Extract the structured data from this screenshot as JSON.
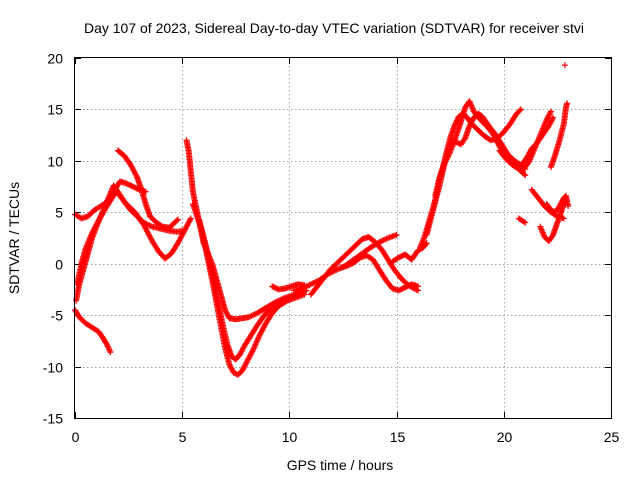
{
  "chart_data": {
    "type": "scatter",
    "title": "Day 107 of 2023, Sidereal Day-to-day VTEC variation (SDTVAR) for receiver stvi",
    "xlabel": "GPS time / hours",
    "ylabel": "SDTVAR / TECUs",
    "xlim": [
      0,
      25
    ],
    "ylim": [
      -15,
      20
    ],
    "xticks": [
      "0",
      "5",
      "10",
      "15",
      "20",
      "25"
    ],
    "yticks": [
      "-15",
      "-10",
      "-5",
      "0",
      "5",
      "10",
      "15",
      "20"
    ],
    "xtick_values": [
      0,
      5,
      10,
      15,
      20,
      25
    ],
    "ytick_values": [
      -15,
      -10,
      -5,
      0,
      5,
      10,
      15,
      20
    ],
    "grid": true,
    "marker": "+",
    "color": "#ff0000",
    "series": [
      {
        "points": [
          [
            0.0,
            4.8
          ],
          [
            0.3,
            4.4
          ],
          [
            0.6,
            4.6
          ],
          [
            0.9,
            5.2
          ],
          [
            1.2,
            5.6
          ],
          [
            1.5,
            6.0
          ],
          [
            1.8,
            7.0
          ],
          [
            2.1,
            8.0
          ],
          [
            2.4,
            7.8
          ],
          [
            2.7,
            7.5
          ],
          [
            3.0,
            7.2
          ],
          [
            3.3,
            7.0
          ]
        ]
      },
      {
        "points": [
          [
            0.0,
            -4.5
          ],
          [
            0.2,
            -5.2
          ],
          [
            0.5,
            -5.8
          ],
          [
            0.8,
            -6.2
          ],
          [
            1.1,
            -6.6
          ],
          [
            1.3,
            -7.2
          ],
          [
            1.5,
            -7.9
          ],
          [
            1.65,
            -8.6
          ]
        ]
      },
      {
        "points": [
          [
            0.05,
            -3.6
          ],
          [
            0.2,
            -2.0
          ],
          [
            0.4,
            -0.5
          ],
          [
            0.6,
            1.0
          ],
          [
            0.8,
            2.5
          ],
          [
            1.0,
            3.6
          ],
          [
            1.2,
            4.6
          ],
          [
            1.4,
            5.6
          ],
          [
            1.6,
            6.6
          ],
          [
            1.8,
            7.6
          ],
          [
            2.0,
            7.0
          ],
          [
            2.3,
            6.0
          ],
          [
            2.6,
            5.2
          ],
          [
            2.9,
            4.6
          ],
          [
            3.2,
            4.0
          ],
          [
            3.6,
            3.6
          ],
          [
            4.0,
            3.4
          ],
          [
            4.4,
            3.2
          ],
          [
            4.8,
            3.1
          ],
          [
            5.0,
            3.2
          ]
        ]
      },
      {
        "points": [
          [
            0.1,
            -2.0
          ],
          [
            0.3,
            0.0
          ],
          [
            0.5,
            1.5
          ],
          [
            0.8,
            3.0
          ],
          [
            1.1,
            4.2
          ],
          [
            1.4,
            5.3
          ],
          [
            1.7,
            6.3
          ],
          [
            1.9,
            7.0
          ],
          [
            2.1,
            6.6
          ],
          [
            2.4,
            5.8
          ],
          [
            2.8,
            5.0
          ],
          [
            3.2,
            3.8
          ],
          [
            3.6,
            2.2
          ],
          [
            3.9,
            1.2
          ],
          [
            4.2,
            0.5
          ],
          [
            4.5,
            1.0
          ],
          [
            4.8,
            2.0
          ],
          [
            5.1,
            3.2
          ],
          [
            5.4,
            4.4
          ]
        ]
      },
      {
        "points": [
          [
            2.0,
            11.0
          ],
          [
            2.3,
            10.5
          ],
          [
            2.6,
            9.6
          ],
          [
            2.9,
            8.4
          ],
          [
            3.1,
            7.2
          ],
          [
            3.3,
            5.8
          ],
          [
            3.5,
            4.6
          ],
          [
            3.8,
            4.0
          ],
          [
            4.1,
            3.6
          ],
          [
            4.4,
            3.5
          ],
          [
            4.6,
            3.9
          ],
          [
            4.8,
            4.3
          ]
        ]
      },
      {
        "points": [
          [
            5.2,
            12.0
          ],
          [
            5.3,
            11.0
          ],
          [
            5.35,
            10.0
          ],
          [
            5.4,
            9.0
          ],
          [
            5.45,
            8.0
          ],
          [
            5.5,
            7.0
          ],
          [
            5.6,
            6.0
          ],
          [
            5.7,
            5.0
          ],
          [
            5.8,
            4.0
          ],
          [
            5.9,
            3.0
          ],
          [
            6.0,
            2.0
          ],
          [
            6.2,
            1.0
          ],
          [
            6.4,
            0.0
          ],
          [
            6.6,
            -1.5
          ],
          [
            6.8,
            -3.0
          ],
          [
            7.0,
            -4.5
          ],
          [
            7.2,
            -5.3
          ],
          [
            7.5,
            -5.4
          ],
          [
            7.8,
            -5.3
          ],
          [
            8.1,
            -5.2
          ],
          [
            8.5,
            -4.8
          ],
          [
            8.9,
            -4.3
          ],
          [
            9.3,
            -3.8
          ],
          [
            9.7,
            -3.4
          ],
          [
            10.1,
            -3.1
          ],
          [
            10.5,
            -2.8
          ],
          [
            10.8,
            -2.6
          ]
        ]
      },
      {
        "points": [
          [
            5.5,
            5.8
          ],
          [
            5.7,
            4.6
          ],
          [
            5.9,
            3.4
          ],
          [
            6.1,
            1.8
          ],
          [
            6.3,
            0.0
          ],
          [
            6.5,
            -2.0
          ],
          [
            6.7,
            -4.0
          ],
          [
            6.9,
            -6.0
          ],
          [
            7.1,
            -7.8
          ],
          [
            7.3,
            -9.0
          ],
          [
            7.5,
            -9.3
          ],
          [
            7.7,
            -8.8
          ],
          [
            7.9,
            -8.0
          ],
          [
            8.2,
            -7.0
          ],
          [
            8.5,
            -6.0
          ],
          [
            8.8,
            -5.1
          ],
          [
            9.1,
            -4.4
          ],
          [
            9.4,
            -3.9
          ],
          [
            9.8,
            -3.5
          ],
          [
            10.2,
            -3.2
          ],
          [
            10.6,
            -2.9
          ]
        ]
      },
      {
        "points": [
          [
            5.8,
            4.2
          ],
          [
            6.0,
            2.4
          ],
          [
            6.2,
            0.4
          ],
          [
            6.4,
            -1.6
          ],
          [
            6.6,
            -3.8
          ],
          [
            6.8,
            -6.0
          ],
          [
            7.0,
            -8.2
          ],
          [
            7.2,
            -9.8
          ],
          [
            7.4,
            -10.6
          ],
          [
            7.6,
            -10.8
          ],
          [
            7.8,
            -10.4
          ],
          [
            8.0,
            -9.6
          ],
          [
            8.3,
            -8.4
          ],
          [
            8.6,
            -7.0
          ],
          [
            8.9,
            -5.8
          ],
          [
            9.2,
            -4.8
          ],
          [
            9.5,
            -4.1
          ],
          [
            9.9,
            -3.6
          ],
          [
            10.3,
            -3.3
          ],
          [
            10.7,
            -3.0
          ]
        ]
      },
      {
        "points": [
          [
            9.2,
            -2.2
          ],
          [
            9.5,
            -2.5
          ],
          [
            9.8,
            -2.4
          ],
          [
            10.1,
            -2.2
          ],
          [
            10.4,
            -2.0
          ],
          [
            10.7,
            -2.1
          ]
        ]
      },
      {
        "points": [
          [
            10.2,
            -2.6
          ],
          [
            10.6,
            -2.4
          ],
          [
            11.0,
            -2.0
          ],
          [
            11.4,
            -1.6
          ],
          [
            11.8,
            -1.0
          ],
          [
            12.2,
            -0.6
          ],
          [
            12.6,
            -0.2
          ],
          [
            13.0,
            0.4
          ],
          [
            13.4,
            1.0
          ],
          [
            13.8,
            1.6
          ],
          [
            14.2,
            2.1
          ],
          [
            14.6,
            2.5
          ],
          [
            15.0,
            2.8
          ]
        ]
      },
      {
        "points": [
          [
            11.0,
            -3.0
          ],
          [
            11.3,
            -2.2
          ],
          [
            11.6,
            -1.4
          ],
          [
            11.9,
            -0.6
          ],
          [
            12.2,
            0.0
          ],
          [
            12.5,
            0.6
          ],
          [
            12.8,
            1.2
          ],
          [
            13.1,
            1.8
          ],
          [
            13.4,
            2.4
          ],
          [
            13.7,
            2.6
          ],
          [
            14.0,
            2.1
          ],
          [
            14.3,
            1.4
          ],
          [
            14.6,
            0.4
          ],
          [
            14.9,
            -0.6
          ],
          [
            15.2,
            -1.4
          ],
          [
            15.5,
            -2.0
          ],
          [
            15.8,
            -2.4
          ],
          [
            16.0,
            -2.6
          ]
        ]
      },
      {
        "points": [
          [
            12.4,
            -0.4
          ],
          [
            12.7,
            -0.2
          ],
          [
            13.0,
            0.1
          ],
          [
            13.3,
            0.6
          ],
          [
            13.6,
            0.8
          ],
          [
            13.9,
            0.4
          ],
          [
            14.2,
            -0.6
          ],
          [
            14.5,
            -1.6
          ],
          [
            14.8,
            -2.4
          ],
          [
            15.1,
            -2.6
          ],
          [
            15.4,
            -2.3
          ],
          [
            15.7,
            -2.0
          ],
          [
            16.0,
            -2.2
          ]
        ]
      },
      {
        "points": [
          [
            14.8,
            0.2
          ],
          [
            15.1,
            0.6
          ],
          [
            15.4,
            0.9
          ],
          [
            15.7,
            0.4
          ],
          [
            16.0,
            1.3
          ],
          [
            16.2,
            1.5
          ],
          [
            16.4,
            2.0
          ]
        ]
      },
      {
        "points": [
          [
            16.1,
            1.6
          ],
          [
            16.3,
            2.6
          ],
          [
            16.5,
            4.0
          ],
          [
            16.7,
            5.4
          ],
          [
            16.9,
            7.0
          ],
          [
            17.1,
            8.8
          ],
          [
            17.3,
            10.6
          ],
          [
            17.5,
            12.2
          ],
          [
            17.7,
            13.4
          ],
          [
            17.9,
            14.3
          ],
          [
            18.1,
            14.6
          ],
          [
            18.3,
            14.2
          ],
          [
            18.5,
            13.6
          ],
          [
            18.8,
            13.0
          ],
          [
            19.1,
            12.4
          ],
          [
            19.4,
            12.0
          ],
          [
            19.7,
            12.2
          ],
          [
            20.0,
            12.8
          ],
          [
            20.3,
            13.6
          ],
          [
            20.6,
            14.6
          ],
          [
            20.8,
            15.0
          ]
        ]
      },
      {
        "points": [
          [
            16.4,
            2.8
          ],
          [
            16.6,
            4.4
          ],
          [
            16.8,
            6.0
          ],
          [
            17.0,
            7.6
          ],
          [
            17.2,
            9.4
          ],
          [
            17.4,
            11.0
          ],
          [
            17.6,
            12.0
          ],
          [
            17.8,
            11.8
          ],
          [
            18.0,
            11.6
          ],
          [
            18.2,
            12.2
          ],
          [
            18.4,
            13.4
          ],
          [
            18.6,
            14.2
          ],
          [
            18.8,
            14.6
          ],
          [
            19.0,
            14.3
          ],
          [
            19.3,
            13.4
          ],
          [
            19.6,
            12.6
          ],
          [
            19.9,
            11.6
          ],
          [
            20.2,
            10.6
          ],
          [
            20.5,
            10.0
          ],
          [
            20.8,
            9.6
          ],
          [
            21.0,
            9.2
          ]
        ]
      },
      {
        "points": [
          [
            16.8,
            6.6
          ],
          [
            17.0,
            8.4
          ],
          [
            17.2,
            9.6
          ],
          [
            17.4,
            10.4
          ],
          [
            17.6,
            11.4
          ],
          [
            17.8,
            12.6
          ],
          [
            18.0,
            13.8
          ],
          [
            18.2,
            15.2
          ],
          [
            18.4,
            15.8
          ],
          [
            18.6,
            14.8
          ],
          [
            18.9,
            14.0
          ],
          [
            19.2,
            13.4
          ],
          [
            19.5,
            12.6
          ],
          [
            19.8,
            11.4
          ],
          [
            20.1,
            10.4
          ],
          [
            20.4,
            9.8
          ],
          [
            20.7,
            9.2
          ],
          [
            21.0,
            8.6
          ]
        ]
      },
      {
        "points": [
          [
            19.8,
            11.0
          ],
          [
            20.1,
            10.2
          ],
          [
            20.4,
            9.6
          ],
          [
            20.7,
            9.2
          ],
          [
            21.0,
            9.4
          ],
          [
            21.2,
            10.0
          ],
          [
            21.4,
            11.0
          ],
          [
            21.6,
            12.0
          ],
          [
            21.8,
            13.0
          ],
          [
            22.0,
            14.0
          ],
          [
            22.2,
            14.8
          ]
        ]
      },
      {
        "points": [
          [
            20.9,
            9.8
          ],
          [
            21.1,
            10.4
          ],
          [
            21.3,
            11.2
          ],
          [
            21.5,
            11.6
          ],
          [
            21.7,
            12.2
          ],
          [
            21.9,
            12.8
          ],
          [
            22.1,
            13.4
          ],
          [
            22.3,
            14.2
          ]
        ]
      },
      {
        "points": [
          [
            21.3,
            7.2
          ],
          [
            21.6,
            6.4
          ],
          [
            21.9,
            5.6
          ],
          [
            22.2,
            5.0
          ],
          [
            22.5,
            4.6
          ],
          [
            22.8,
            4.4
          ]
        ]
      },
      {
        "points": [
          [
            21.7,
            3.6
          ],
          [
            21.9,
            2.6
          ],
          [
            22.1,
            2.2
          ],
          [
            22.3,
            2.8
          ],
          [
            22.5,
            4.0
          ],
          [
            22.7,
            5.2
          ],
          [
            22.9,
            6.2
          ]
        ]
      },
      {
        "points": [
          [
            22.0,
            5.8
          ],
          [
            22.2,
            5.2
          ],
          [
            22.4,
            5.0
          ],
          [
            22.6,
            5.6
          ],
          [
            22.8,
            6.4
          ],
          [
            22.9,
            6.6
          ],
          [
            23.0,
            5.6
          ]
        ]
      },
      {
        "points": [
          [
            22.2,
            9.4
          ],
          [
            22.4,
            10.6
          ],
          [
            22.6,
            12.0
          ],
          [
            22.8,
            13.6
          ],
          [
            22.9,
            15.2
          ],
          [
            22.95,
            15.6
          ]
        ]
      },
      {
        "points": [
          [
            20.7,
            4.4
          ],
          [
            21.0,
            4.0
          ]
        ]
      },
      {
        "points": [
          [
            22.85,
            19.3
          ]
        ]
      }
    ]
  }
}
